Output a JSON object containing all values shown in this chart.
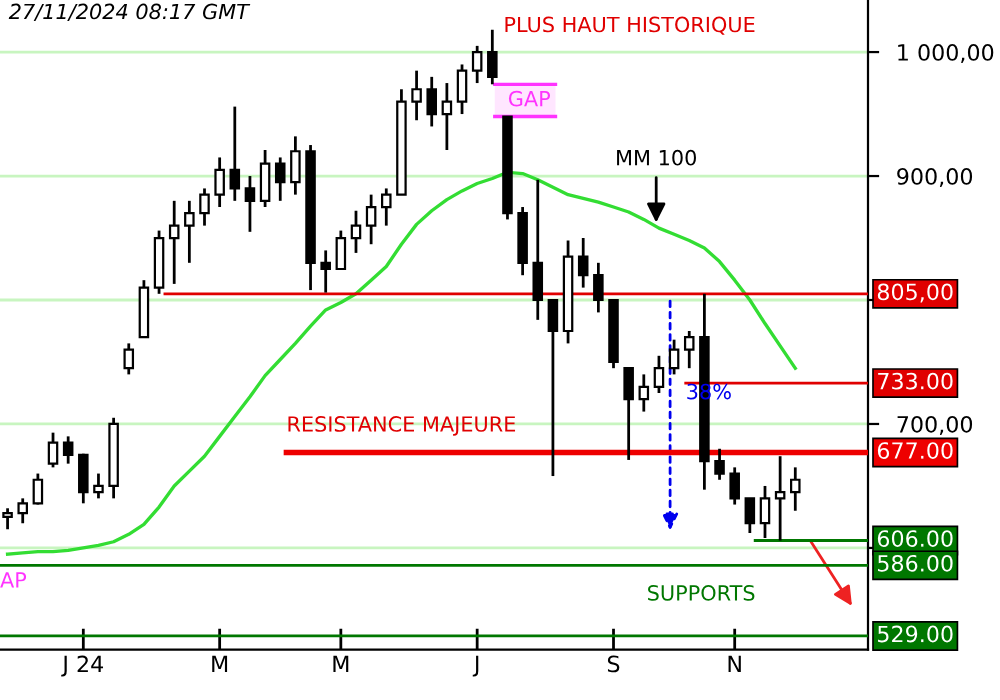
{
  "chart_data": {
    "type": "candlestick",
    "categories": [
      null,
      null,
      null,
      null,
      null,
      "J 24",
      null,
      null,
      null,
      null,
      null,
      null,
      null,
      null,
      "M",
      null,
      null,
      null,
      null,
      null,
      null,
      null,
      "M",
      null,
      null,
      null,
      null,
      null,
      null,
      null,
      null,
      "J",
      null,
      null,
      null,
      null,
      null,
      null,
      null,
      null,
      "S",
      null,
      null,
      null,
      null,
      null,
      null,
      null,
      "N",
      null,
      null,
      null,
      null
    ],
    "ohlc": [
      [
        625,
        632,
        615,
        628
      ],
      [
        628,
        640,
        620,
        636
      ],
      [
        636,
        660,
        635,
        655
      ],
      [
        668,
        693,
        665,
        685
      ],
      [
        685,
        690,
        668,
        675
      ],
      [
        675,
        676,
        636,
        645
      ],
      [
        645,
        660,
        640,
        650
      ],
      [
        650,
        705,
        640,
        700
      ],
      [
        745,
        765,
        740,
        760
      ],
      [
        770,
        816,
        770,
        810
      ],
      [
        810,
        856,
        805,
        850
      ],
      [
        850,
        880,
        813,
        860
      ],
      [
        860,
        880,
        830,
        870
      ],
      [
        870,
        890,
        860,
        885
      ],
      [
        885,
        915,
        875,
        905
      ],
      [
        905,
        956,
        880,
        890
      ],
      [
        890,
        900,
        855,
        880
      ],
      [
        880,
        921,
        875,
        910
      ],
      [
        910,
        915,
        880,
        895
      ],
      [
        895,
        932,
        885,
        920
      ],
      [
        920,
        925,
        808,
        830
      ],
      [
        830,
        840,
        806,
        825
      ],
      [
        825,
        856,
        825,
        850
      ],
      [
        850,
        872,
        838,
        860
      ],
      [
        860,
        885,
        845,
        875
      ],
      [
        875,
        890,
        860,
        885
      ],
      [
        885,
        970,
        885,
        960
      ],
      [
        960,
        985,
        945,
        970
      ],
      [
        970,
        980,
        940,
        950
      ],
      [
        950,
        975,
        921,
        960
      ],
      [
        960,
        990,
        950,
        985
      ],
      [
        985,
        1005,
        975,
        1000
      ],
      [
        1000,
        1018,
        974,
        980
      ],
      [
        948,
        948,
        865,
        870
      ],
      [
        870,
        875,
        820,
        830
      ],
      [
        830,
        897,
        784,
        800
      ],
      [
        800,
        800,
        658,
        775
      ],
      [
        775,
        848,
        765,
        835
      ],
      [
        835,
        850,
        810,
        820
      ],
      [
        820,
        830,
        790,
        800
      ],
      [
        800,
        800,
        745,
        750
      ],
      [
        745,
        745,
        671,
        720
      ],
      [
        720,
        740,
        710,
        730
      ],
      [
        730,
        755,
        725,
        745
      ],
      [
        745,
        768,
        740,
        760
      ],
      [
        760,
        775,
        745,
        770
      ],
      [
        770,
        805,
        647,
        670
      ],
      [
        670,
        680,
        655,
        660
      ],
      [
        660,
        665,
        635,
        640
      ],
      [
        640,
        640,
        612,
        620
      ],
      [
        620,
        650,
        608,
        640
      ],
      [
        640,
        674,
        606,
        645
      ],
      [
        645,
        665,
        630,
        655
      ]
    ],
    "series": [
      {
        "type": "line",
        "color": "#33dd33",
        "values": [
          595,
          596,
          597,
          597,
          598,
          600,
          602,
          605,
          611,
          619,
          633,
          650,
          662,
          674,
          690,
          706,
          722,
          739,
          752,
          765,
          779,
          792,
          798,
          805,
          816,
          827,
          845,
          861,
          872,
          881,
          888,
          894,
          898,
          903,
          902,
          897,
          891,
          885,
          882,
          879,
          875,
          871,
          865,
          858,
          853,
          848,
          842,
          831,
          816,
          800,
          781,
          763,
          745
        ]
      }
    ],
    "ylim": [
      518,
      1042
    ],
    "yticks": [
      {
        "value": 600,
        "label": null
      },
      {
        "value": 700,
        "label": "700,00"
      },
      {
        "value": 800,
        "label": null
      },
      {
        "value": 900,
        "label": "900,00"
      },
      {
        "value": 1000,
        "label": "1 000,00"
      }
    ],
    "grid": "y",
    "ref_lines": [
      {
        "axis": "y",
        "value": 805,
        "label": "805,00",
        "color": "#e00000"
      },
      {
        "axis": "y",
        "value": 733,
        "label": "733.00",
        "color": "#e00000"
      },
      {
        "axis": "y",
        "value": 677,
        "label": "677.00",
        "color": "#ee0000"
      },
      {
        "axis": "y",
        "value": 606,
        "label": "606.00",
        "color": "#007700"
      },
      {
        "axis": "y",
        "value": 586,
        "label": "586.00",
        "color": "#007700"
      },
      {
        "axis": "y",
        "value": 529,
        "label": "529.00",
        "color": "#007700"
      }
    ],
    "bands": [
      {
        "axis": "y",
        "from": 948,
        "to": 974,
        "label": "GAP",
        "color": "#ff33ff"
      }
    ],
    "annotations": [
      "27/11/2024 08:17 GMT",
      "PLUS HAUT HISTORIQUE",
      {
        "text": "MM 100",
        "y": 858
      },
      "38%",
      "RESISTANCE MAJEURE",
      "SUPPORTS",
      "AP"
    ]
  }
}
